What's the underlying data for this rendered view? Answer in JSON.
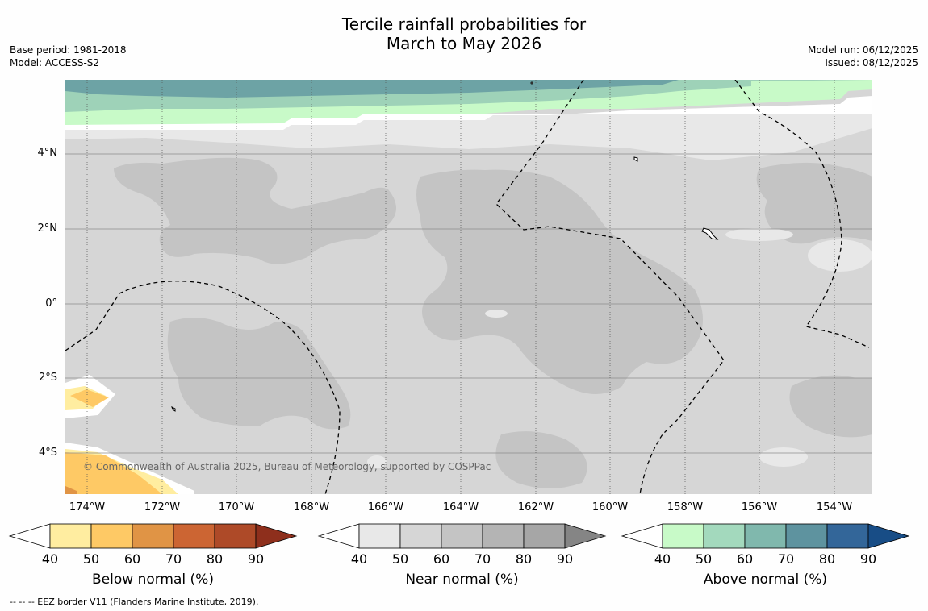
{
  "title_line1": "Tercile rainfall probabilities for",
  "title_line2": "March to May 2026",
  "base_period": "Base period: 1981-2018",
  "model": "Model: ACCESS-S2",
  "model_run": "Model run: 06/12/2025",
  "issued": "Issued: 08/12/2025",
  "copyright": "© Commonwealth of Australia 2025, Bureau of Meteorology, supported by COSPPac",
  "lat_labels": [
    "4°N",
    "2°N",
    "0°",
    "2°S",
    "4°S"
  ],
  "lon_labels": [
    "174°W",
    "172°W",
    "170°W",
    "168°W",
    "166°W",
    "164°W",
    "162°W",
    "160°W",
    "158°W",
    "156°W",
    "154°W"
  ],
  "colorbars": {
    "below": {
      "label": "Below normal (%)",
      "ticks": [
        "40",
        "50",
        "60",
        "70",
        "80",
        "90"
      ],
      "colors": [
        "#ffffff",
        "#ffeda0",
        "#fec965",
        "#e09445",
        "#cc6533",
        "#ae4a28",
        "#8e2f1c"
      ]
    },
    "near": {
      "label": "Near normal (%)",
      "ticks": [
        "40",
        "50",
        "60",
        "70",
        "80",
        "90"
      ],
      "colors": [
        "#ffffff",
        "#e8e8e8",
        "#d6d6d6",
        "#c4c4c4",
        "#b4b4b4",
        "#a6a6a6",
        "#858585"
      ]
    },
    "above": {
      "label": "Above normal (%)",
      "ticks": [
        "40",
        "50",
        "60",
        "70",
        "80",
        "90"
      ],
      "colors": [
        "#ffffff",
        "#c8fac8",
        "#a3d9bd",
        "#80b8ad",
        "#5e939f",
        "#336699",
        "#184d86"
      ]
    }
  },
  "footnote": "--  --  -- EEZ border V11 (Flanders Marine Institute, 2019).",
  "colors": {
    "light_grey": "#e8e8e8",
    "mid_grey": "#d6d6d6",
    "dark_grey": "#c4c4c4",
    "light_green": "#c8fac8",
    "mid_green": "#9ed2b8",
    "teal": "#6da3a5",
    "light_yellow": "#ffeda0",
    "orange": "#fec965"
  }
}
